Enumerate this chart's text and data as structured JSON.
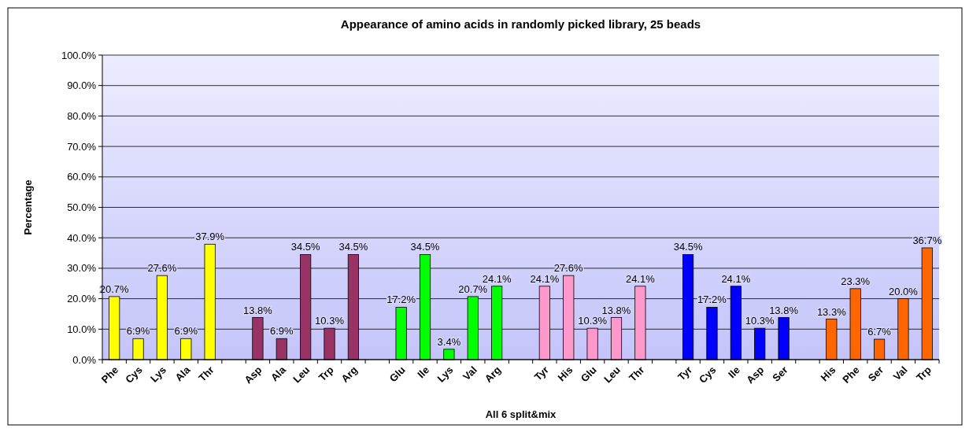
{
  "chart_data": {
    "type": "bar",
    "title": "Appearance of amino acids in randomly picked library, 25 beads",
    "xlabel": "All 6 split&mix",
    "ylabel": "Percentage",
    "categories": [
      "Phe",
      "Cys",
      "Lys",
      "Ala",
      "Thr",
      null,
      "Asp",
      "Ala",
      "Leu",
      "Trp",
      "Arg",
      null,
      "Glu",
      "Ile",
      "Lys",
      "Val",
      "Arg",
      null,
      "Tyr",
      "His",
      "Glu",
      "Leu",
      "Thr",
      null,
      "Tyr",
      "Cys",
      "Ile",
      "Asp",
      "Ser",
      null,
      "His",
      "Phe",
      "Ser",
      "Val",
      "Trp"
    ],
    "values": [
      20.7,
      6.9,
      27.6,
      6.9,
      37.9,
      null,
      13.8,
      6.9,
      34.5,
      10.3,
      34.5,
      null,
      17.2,
      34.5,
      3.4,
      20.7,
      24.1,
      null,
      24.1,
      27.6,
      10.3,
      13.8,
      24.1,
      null,
      34.5,
      17.2,
      24.1,
      10.3,
      13.8,
      null,
      13.3,
      23.3,
      6.7,
      20.0,
      36.7
    ],
    "value_labels": [
      "20.7%",
      "6.9%",
      "27.6%",
      "6.9%",
      "37.9%",
      null,
      "13.8%",
      "6.9%",
      "34.5%",
      "10.3%",
      "34.5%",
      null,
      "17.2%",
      "34.5%",
      "3.4%",
      "20.7%",
      "24.1%",
      null,
      "24.1%",
      "27.6%",
      "10.3%",
      "13.8%",
      "24.1%",
      null,
      "34.5%",
      "17.2%",
      "24.1%",
      "10.3%",
      "13.8%",
      null,
      "13.3%",
      "23.3%",
      "6.7%",
      "20.0%",
      "36.7%"
    ],
    "colors": [
      "#ffff00",
      "#ffff00",
      "#ffff00",
      "#ffff00",
      "#ffff00",
      null,
      "#993366",
      "#993366",
      "#993366",
      "#993366",
      "#993366",
      null,
      "#00ff00",
      "#00ff00",
      "#00ff00",
      "#00ff00",
      "#00ff00",
      null,
      "#ff99cc",
      "#ff99cc",
      "#ff99cc",
      "#ff99cc",
      "#ff99cc",
      null,
      "#0000ff",
      "#0000ff",
      "#0000ff",
      "#0000ff",
      "#0000ff",
      null,
      "#ff6600",
      "#ff6600",
      "#ff6600",
      "#ff6600",
      "#ff6600"
    ],
    "ylim": [
      0,
      100
    ],
    "yticks": [
      {
        "value": 0,
        "label": "0.0%"
      },
      {
        "value": 10,
        "label": "10.0%"
      },
      {
        "value": 20,
        "label": "20.0%"
      },
      {
        "value": 30,
        "label": "30.0%"
      },
      {
        "value": 40,
        "label": "40.0%"
      },
      {
        "value": 50,
        "label": "50.0%"
      },
      {
        "value": 60,
        "label": "60.0%"
      },
      {
        "value": 70,
        "label": "70.0%"
      },
      {
        "value": 80,
        "label": "80.0%"
      },
      {
        "value": 90,
        "label": "90.0%"
      },
      {
        "value": 100,
        "label": "100.0%"
      }
    ],
    "grid": "y"
  }
}
